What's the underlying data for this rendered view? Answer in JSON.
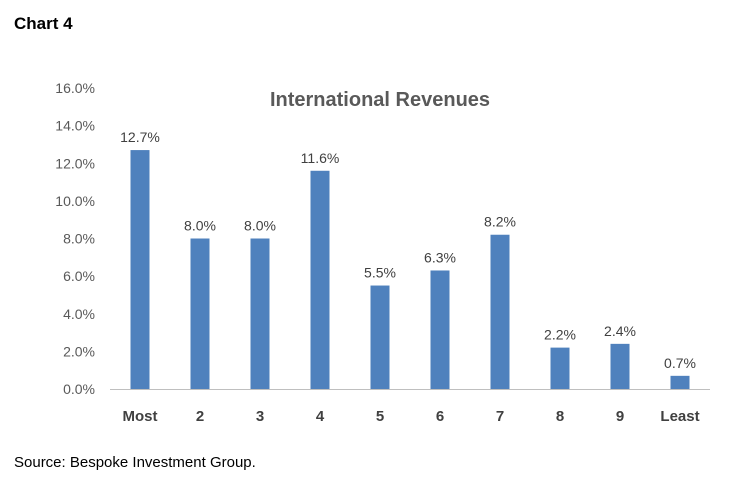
{
  "header": {
    "label": "Chart 4"
  },
  "footer": {
    "source": "Source: Bespoke Investment Group."
  },
  "chart_data": {
    "type": "bar",
    "title": "International Revenues",
    "xlabel": "",
    "ylabel": "",
    "categories": [
      "Most",
      "2",
      "3",
      "4",
      "5",
      "6",
      "7",
      "8",
      "9",
      "Least"
    ],
    "values": [
      12.7,
      8.0,
      8.0,
      11.6,
      5.5,
      6.3,
      8.2,
      2.2,
      2.4,
      0.7
    ],
    "data_labels": [
      "12.7%",
      "8.0%",
      "8.0%",
      "11.6%",
      "5.5%",
      "6.3%",
      "8.2%",
      "2.2%",
      "2.4%",
      "0.7%"
    ],
    "ylim": [
      0,
      16
    ],
    "yticks": [
      0,
      2,
      4,
      6,
      8,
      10,
      12,
      14,
      16
    ],
    "ytick_labels": [
      "0.0%",
      "2.0%",
      "4.0%",
      "6.0%",
      "8.0%",
      "10.0%",
      "12.0%",
      "14.0%",
      "16.0%"
    ],
    "grid": false,
    "legend": "none",
    "colors": {
      "bar": "#4f81bd",
      "axis": "#bfbfbf",
      "label_text": "#404040",
      "tick_text": "#595959"
    }
  }
}
